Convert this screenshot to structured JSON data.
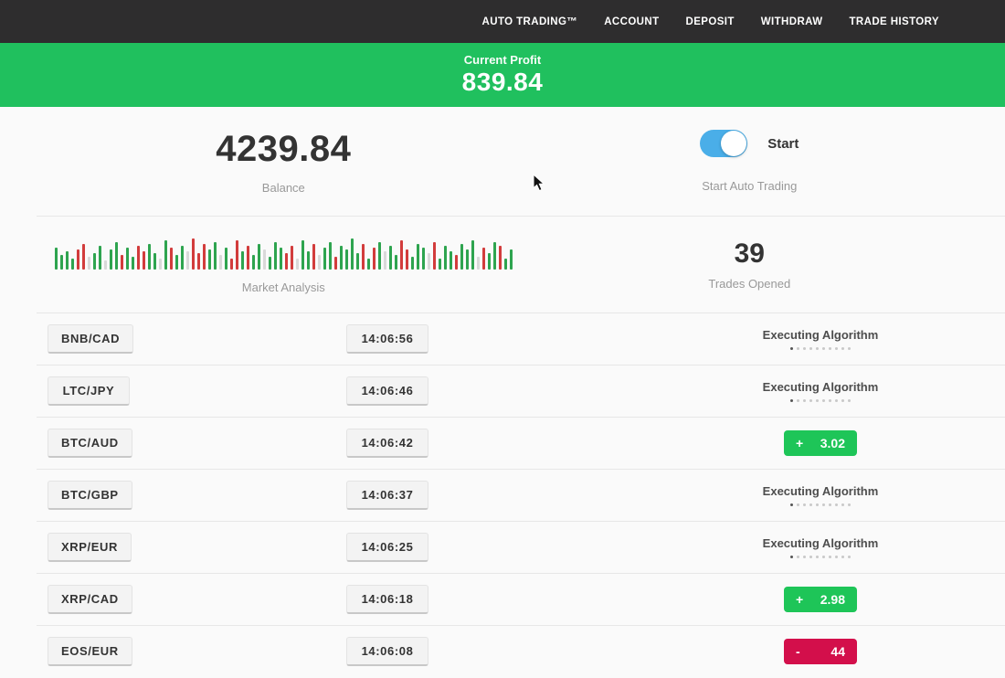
{
  "navbar": {
    "items": [
      {
        "label": "AUTO TRADING™"
      },
      {
        "label": "ACCOUNT"
      },
      {
        "label": "DEPOSIT"
      },
      {
        "label": "WITHDRAW"
      },
      {
        "label": "TRADE HISTORY"
      }
    ]
  },
  "profit_banner": {
    "label": "Current Profit",
    "value": "839.84"
  },
  "stats": {
    "balance": {
      "value": "4239.84",
      "label": "Balance"
    },
    "auto_trading": {
      "toggle_label": "Start",
      "label": "Start Auto Trading",
      "toggle_on": true
    },
    "market_analysis": {
      "label": "Market Analysis"
    },
    "trades_opened": {
      "value": "39",
      "label": "Trades Opened"
    }
  },
  "chart_data": {
    "type": "bar",
    "title": "Market Analysis",
    "xlabel": "",
    "ylabel": "",
    "legend": false,
    "grid": false,
    "note": "decorative tick-activity strip, bottom-aligned bars, values are bar heights in px (max 38), color g=up/green r=down/red e=neutral/pale",
    "palette": {
      "g": "#2ea44f",
      "r": "#d23c3c",
      "e": "#d9d9d9"
    },
    "bars": [
      [
        24,
        "g"
      ],
      [
        16,
        "g"
      ],
      [
        20,
        "g"
      ],
      [
        12,
        "g"
      ],
      [
        22,
        "r"
      ],
      [
        28,
        "r"
      ],
      [
        14,
        "e"
      ],
      [
        18,
        "g"
      ],
      [
        26,
        "g"
      ],
      [
        10,
        "e"
      ],
      [
        22,
        "g"
      ],
      [
        30,
        "g"
      ],
      [
        16,
        "r"
      ],
      [
        24,
        "g"
      ],
      [
        14,
        "g"
      ],
      [
        26,
        "r"
      ],
      [
        20,
        "r"
      ],
      [
        28,
        "g"
      ],
      [
        18,
        "g"
      ],
      [
        12,
        "e"
      ],
      [
        32,
        "g"
      ],
      [
        24,
        "r"
      ],
      [
        16,
        "g"
      ],
      [
        26,
        "g"
      ],
      [
        20,
        "e"
      ],
      [
        34,
        "r"
      ],
      [
        18,
        "r"
      ],
      [
        28,
        "r"
      ],
      [
        22,
        "g"
      ],
      [
        30,
        "g"
      ],
      [
        16,
        "e"
      ],
      [
        24,
        "g"
      ],
      [
        12,
        "r"
      ],
      [
        32,
        "r"
      ],
      [
        20,
        "g"
      ],
      [
        26,
        "r"
      ],
      [
        16,
        "g"
      ],
      [
        28,
        "g"
      ],
      [
        22,
        "e"
      ],
      [
        14,
        "g"
      ],
      [
        30,
        "g"
      ],
      [
        24,
        "g"
      ],
      [
        18,
        "r"
      ],
      [
        26,
        "r"
      ],
      [
        12,
        "e"
      ],
      [
        32,
        "g"
      ],
      [
        20,
        "g"
      ],
      [
        28,
        "r"
      ],
      [
        16,
        "e"
      ],
      [
        24,
        "g"
      ],
      [
        30,
        "g"
      ],
      [
        14,
        "r"
      ],
      [
        26,
        "g"
      ],
      [
        22,
        "g"
      ],
      [
        34,
        "g"
      ],
      [
        18,
        "g"
      ],
      [
        28,
        "r"
      ],
      [
        12,
        "g"
      ],
      [
        24,
        "r"
      ],
      [
        30,
        "g"
      ],
      [
        20,
        "e"
      ],
      [
        26,
        "g"
      ],
      [
        16,
        "g"
      ],
      [
        32,
        "r"
      ],
      [
        22,
        "r"
      ],
      [
        14,
        "g"
      ],
      [
        28,
        "g"
      ],
      [
        24,
        "g"
      ],
      [
        18,
        "e"
      ],
      [
        30,
        "r"
      ],
      [
        12,
        "g"
      ],
      [
        26,
        "g"
      ],
      [
        20,
        "g"
      ],
      [
        16,
        "r"
      ],
      [
        28,
        "g"
      ],
      [
        22,
        "g"
      ],
      [
        32,
        "g"
      ],
      [
        14,
        "e"
      ],
      [
        24,
        "r"
      ],
      [
        18,
        "g"
      ],
      [
        30,
        "g"
      ],
      [
        26,
        "r"
      ],
      [
        12,
        "g"
      ],
      [
        22,
        "g"
      ]
    ]
  },
  "trades": [
    {
      "pair": "BNB/CAD",
      "time": "14:06:56",
      "status": "executing",
      "status_label": "Executing Algorithm",
      "dots_total": 10,
      "dots_active": 1
    },
    {
      "pair": "LTC/JPY",
      "time": "14:06:46",
      "status": "executing",
      "status_label": "Executing Algorithm",
      "dots_total": 10,
      "dots_active": 1
    },
    {
      "pair": "BTC/AUD",
      "time": "14:06:42",
      "status": "profit",
      "sign": "+",
      "value": "3.02"
    },
    {
      "pair": "BTC/GBP",
      "time": "14:06:37",
      "status": "executing",
      "status_label": "Executing Algorithm",
      "dots_total": 10,
      "dots_active": 1
    },
    {
      "pair": "XRP/EUR",
      "time": "14:06:25",
      "status": "executing",
      "status_label": "Executing Algorithm",
      "dots_total": 10,
      "dots_active": 1
    },
    {
      "pair": "XRP/CAD",
      "time": "14:06:18",
      "status": "profit",
      "sign": "+",
      "value": "2.98"
    },
    {
      "pair": "EOS/EUR",
      "time": "14:06:08",
      "status": "loss",
      "sign": "-",
      "value": "44"
    }
  ],
  "colors": {
    "navbar_bg": "#2e2d2e",
    "banner_green": "#20c05e",
    "profit_green": "#1ec558",
    "loss_red": "#d30f4b",
    "toggle_blue": "#4aaee8",
    "chip_bg": "#f3f3f3",
    "chip_border": "#c8c8c8",
    "page_bg": "#fafafa",
    "divider": "#e7e7e7",
    "text_dark": "#333333",
    "text_gray": "#999999",
    "exec_text": "#4d4d4d"
  }
}
